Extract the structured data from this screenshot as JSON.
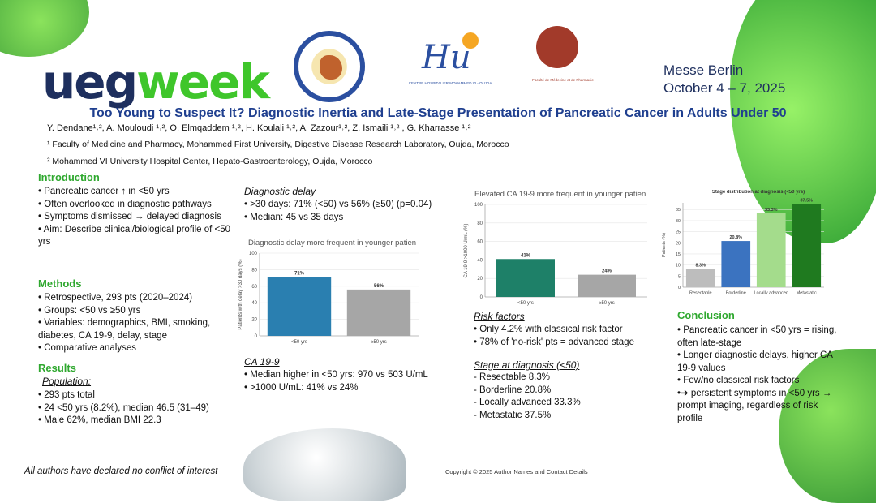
{
  "header": {
    "logo_ueg": "ueg",
    "logo_week": "week",
    "venue_line1": "Messe Berlin",
    "venue_line2": "October 4 – 7, 2025",
    "logo2_text": "Hu",
    "logo2_caption": "CENTRE HOSPITALIER MOHAMMED VI - OUJDA",
    "logo3_caption": "Faculté de Médecine et de Pharmacie"
  },
  "title": "Too Young to Suspect It? Diagnostic Inertia and Late-Stage Presentation of Pancreatic Cancer in Adults Under 50",
  "authors": "Y. Dendane¹˒², A. Mouloudi ¹˒², O. Elmqaddem ¹˒², H. Koulali ¹˒², A. Zazour¹˒², Z. Ismaili ¹˒² , G. Kharrasse ¹˒²",
  "affiliations": [
    "¹ Faculty of Medicine and Pharmacy, Mohammed First University, Digestive Disease Research Laboratory, Oujda, Morocco",
    "² Mohammed VI University Hospital Center, Hepato-Gastroenterology, Oujda, Morocco"
  ],
  "introduction": {
    "heading": "Introduction",
    "items": [
      "• Pancreatic cancer ↑ in <50 yrs",
      "• Often overlooked in diagnostic pathways",
      "• Symptoms dismissed → delayed diagnosis",
      "• Aim: Describe clinical/biological profile of <50 yrs"
    ]
  },
  "methods": {
    "heading": "Methods",
    "items": [
      "• Retrospective, 293 pts (2020–2024)",
      "• Groups: <50 vs ≥50 yrs",
      "• Variables: demographics, BMI, smoking, diabetes, CA 19-9, delay, stage",
      "• Comparative analyses"
    ]
  },
  "results": {
    "heading": "Results",
    "population_heading": "Population:",
    "population_items": [
      "• 293 pts total",
      "• 24 <50 yrs (8.2%), median 46.5 (31–49)",
      "• Male 62%, median BMI 22.3"
    ]
  },
  "diagnostic_delay": {
    "heading": "Diagnostic delay",
    "items": [
      "• >30 days: 71% (<50) vs 56% (≥50) (p=0.04)",
      "• Median: 45 vs 35 days"
    ]
  },
  "ca199": {
    "heading": "CA 19-9",
    "items": [
      "• Median higher in <50 yrs: 970 vs 503 U/mL",
      "• >1000 U/mL: 41% vs 24%"
    ]
  },
  "risk_factors": {
    "heading": "Risk factors",
    "items": [
      "• Only 4.2% with classical risk factor",
      "• 78% of 'no-risk' pts = advanced stage"
    ]
  },
  "stage": {
    "heading": "Stage at diagnosis (<50)",
    "items": [
      "-   Resectable 8.3%",
      "-   Borderline 20.8%",
      "-   Locally advanced 33.3%",
      "-   Metastatic 37.5%"
    ]
  },
  "conclusion": {
    "heading": "Conclusion",
    "items": [
      "• Pancreatic cancer in <50 yrs = rising, often late-stage",
      "• Longer diagnostic delays, higher CA 19-9 values",
      "• Few/no classical risk factors",
      "•➔ persistent symptoms in <50 yrs → prompt imaging, regardless of risk profile"
    ]
  },
  "footer": {
    "disclosure": "All authors have declared no conflict of interest",
    "copyright": "Copyright © 2025 Author Names and Contact Details"
  },
  "chart_data": [
    {
      "type": "bar",
      "title": "Diagnostic delay more frequent in younger patien",
      "ylabel": "Patients with delay >30 days (%)",
      "categories": [
        "<50 yrs",
        "≥50 yrs"
      ],
      "values": [
        71,
        56
      ],
      "value_labels": [
        "71%",
        "56%"
      ],
      "ylim": [
        0,
        100
      ],
      "yticks": [
        0,
        20,
        40,
        60,
        80,
        100
      ],
      "colors": [
        "#2a7fb0",
        "#a6a6a6"
      ],
      "grid": true
    },
    {
      "type": "bar",
      "title": "Elevated CA 19-9 more frequent in younger patien",
      "ylabel": "CA 19-9 >1000 U/mL (%)",
      "categories": [
        "<50 yrs",
        "≥50 yrs"
      ],
      "values": [
        41,
        24
      ],
      "value_labels": [
        "41%",
        "24%"
      ],
      "ylim": [
        0,
        100
      ],
      "yticks": [
        0,
        20,
        40,
        60,
        80,
        100
      ],
      "colors": [
        "#1e8068",
        "#a6a6a6"
      ],
      "grid": true
    },
    {
      "type": "bar",
      "title": "Stage distribution at diagnosis (<50 yrs)",
      "ylabel": "Patients (%)",
      "categories": [
        "Resectable",
        "Borderline",
        "Locally advanced",
        "Metastatic"
      ],
      "values": [
        8.3,
        20.8,
        33.3,
        37.5
      ],
      "value_labels": [
        "8.3%",
        "20.8%",
        "33.3%",
        "37.5%"
      ],
      "ylim": [
        0,
        38
      ],
      "yticks": [
        0,
        5,
        10,
        15,
        20,
        25,
        30,
        35
      ],
      "colors": [
        "#bdbdbd",
        "#3b73c0",
        "#a4dc8c",
        "#1f7a1f"
      ],
      "grid": true
    }
  ]
}
